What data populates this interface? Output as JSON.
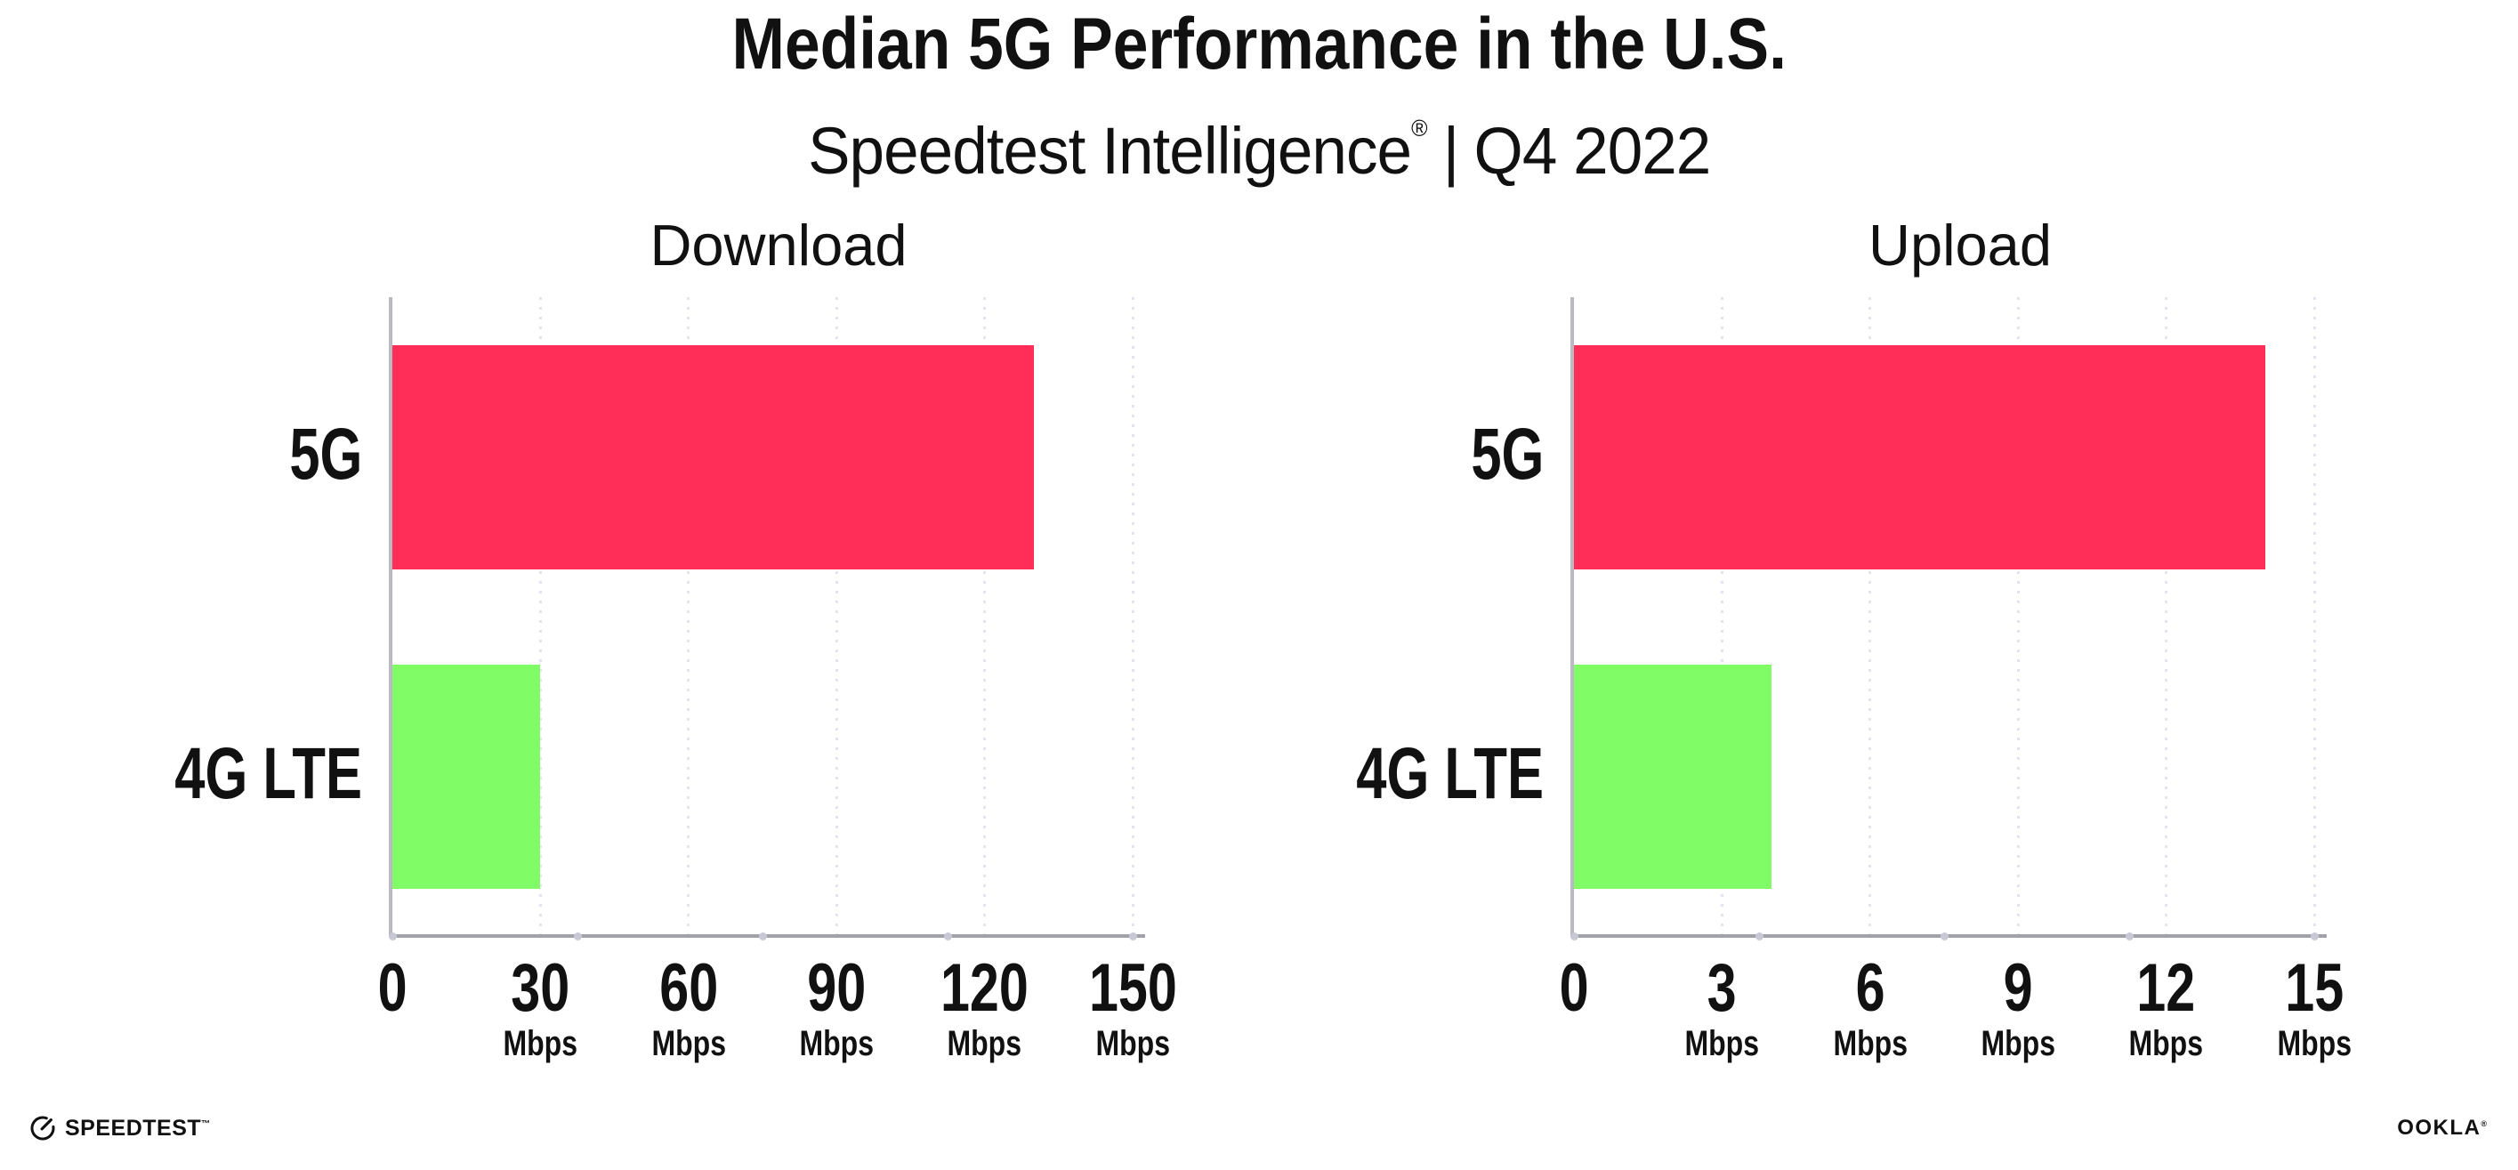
{
  "page": {
    "background": "#ffffff",
    "text_color": "#111111"
  },
  "header": {
    "title": "Median 5G Performance in the U.S.",
    "subtitle_brand": "Speedtest Intelligence",
    "subtitle_reg": "®",
    "subtitle_sep": "|",
    "subtitle_period": "Q4 2022"
  },
  "chart_data": [
    {
      "type": "bar",
      "orientation": "horizontal",
      "title": "Download",
      "categories": [
        "5G",
        "4G LTE"
      ],
      "values": [
        130,
        30
      ],
      "unit": "Mbps",
      "xlim": [
        0,
        150
      ],
      "xticks": [
        0,
        30,
        60,
        90,
        120,
        150
      ],
      "bar_colors": [
        "#FF2E58",
        "#80FC66"
      ],
      "grid": "vertical-dotted",
      "legend": "none"
    },
    {
      "type": "bar",
      "orientation": "horizontal",
      "title": "Upload",
      "categories": [
        "5G",
        "4G LTE"
      ],
      "values": [
        14,
        4
      ],
      "unit": "Mbps",
      "xlim": [
        0,
        15
      ],
      "xticks": [
        0,
        3,
        6,
        9,
        12,
        15
      ],
      "bar_colors": [
        "#FF2E58",
        "#80FC66"
      ],
      "grid": "vertical-dotted",
      "legend": "none"
    }
  ],
  "footer": {
    "speedtest_label": "SPEEDTEST",
    "speedtest_mark": "™",
    "ookla_label": "OOKLA",
    "ookla_mark": "®"
  }
}
